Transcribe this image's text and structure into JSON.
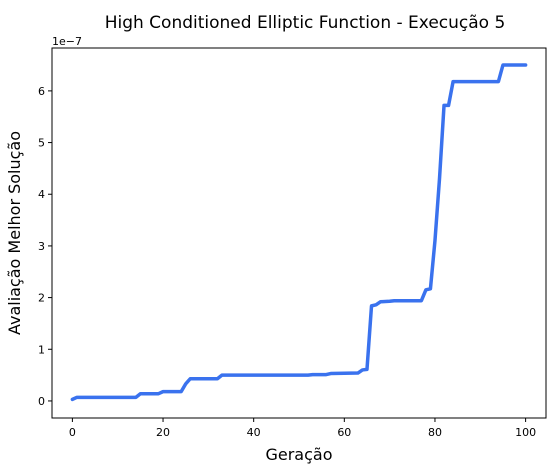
{
  "chart_data": {
    "type": "line",
    "title": "High Conditioned Elliptic Function - Execução 5",
    "xlabel": "Geração",
    "ylabel": "Avaliação Melhor Solução",
    "offset_text": "1e−7",
    "xlim": [
      -4.5,
      104.5
    ],
    "ylim": [
      -0.33,
      6.83
    ],
    "xticks": [
      0,
      20,
      40,
      60,
      80,
      100
    ],
    "yticks": [
      0,
      1,
      2,
      3,
      4,
      5,
      6
    ],
    "grid": false,
    "line_color": "#3a72ee",
    "series": [
      {
        "x": [
          0,
          1,
          2,
          14,
          15,
          19,
          20,
          24,
          25,
          26,
          32,
          33,
          52,
          53,
          56,
          57,
          63,
          64,
          65,
          66,
          67,
          68,
          70,
          71,
          77,
          78,
          79,
          80,
          81,
          82,
          83,
          84,
          94,
          95,
          100
        ],
        "values": [
          0.03,
          0.07,
          0.07,
          0.07,
          0.14,
          0.14,
          0.18,
          0.18,
          0.33,
          0.43,
          0.43,
          0.5,
          0.5,
          0.51,
          0.51,
          0.53,
          0.54,
          0.6,
          0.61,
          1.84,
          1.86,
          1.92,
          1.93,
          1.94,
          1.94,
          2.15,
          2.17,
          3.1,
          4.3,
          5.72,
          5.72,
          6.18,
          6.18,
          6.5,
          6.5
        ]
      }
    ]
  }
}
